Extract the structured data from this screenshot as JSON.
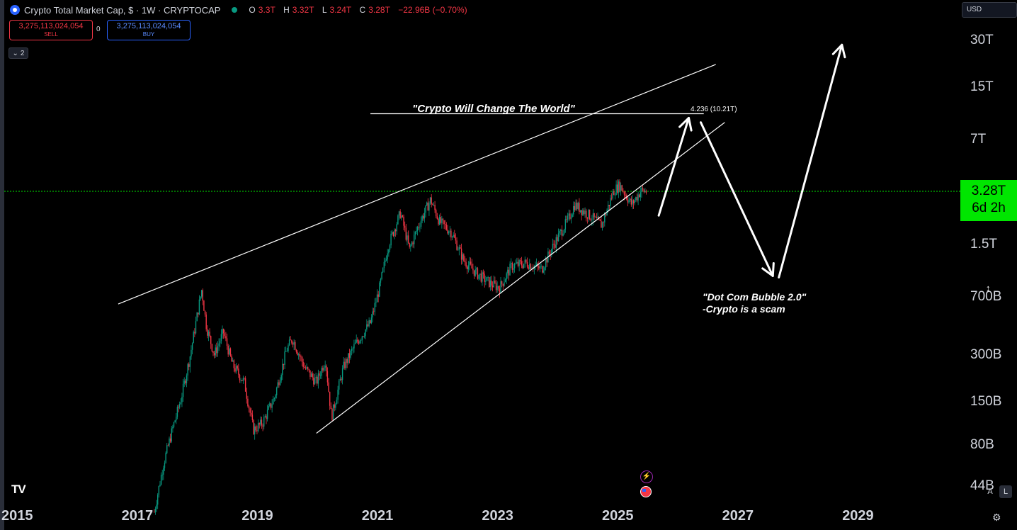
{
  "header": {
    "title": "Crypto Total Market Cap, $ · 1W · CRYPTOCAP",
    "ohlc": {
      "o": "3.3T",
      "h": "3.32T",
      "l": "3.24T",
      "c": "3.28T",
      "change": "−22.96B (−0.70%)"
    }
  },
  "trade": {
    "sell_value": "3,275,113,024,054",
    "sell_label": "SELL",
    "buy_value": "3,275,113,024,054",
    "buy_label": "BUY",
    "spread": "0"
  },
  "indicators_toggle": "2",
  "currency": "USD",
  "price_tag": {
    "price": "3.28T",
    "countdown": "6d 2h"
  },
  "icons": [
    "tradingview-logo",
    "lightning-icon",
    "us-flag-icon",
    "settings-icon",
    "chevron-down-icon"
  ],
  "scale_buttons": {
    "auto": "A",
    "log": "L"
  },
  "colors": {
    "up": "#089981",
    "down": "#f23645",
    "price_line": "#00e600",
    "drawing": "#ffffff"
  },
  "chart_data": {
    "type": "line",
    "title": "Crypto Total Market Cap, $ · 1W · CRYPTOCAP",
    "scale": "log",
    "y_ticks": [
      "30T",
      "15T",
      "7T",
      "3.28T",
      "1.5T",
      "700B",
      "300B",
      "150B",
      "80B",
      "44B"
    ],
    "x_ticks": [
      "2015",
      "2017",
      "2019",
      "2021",
      "2023",
      "2025",
      "2027",
      "2029"
    ],
    "current_value": 3280000000000.0,
    "series": [
      {
        "values": [
          {
            "x": 2017.25,
            "y": 30000000000.0
          },
          {
            "x": 2017.4,
            "y": 60000000000.0
          },
          {
            "x": 2017.55,
            "y": 100000000000.0
          },
          {
            "x": 2017.7,
            "y": 160000000000.0
          },
          {
            "x": 2017.85,
            "y": 300000000000.0
          },
          {
            "x": 2017.97,
            "y": 550000000000.0
          },
          {
            "x": 2018.04,
            "y": 780000000000.0
          },
          {
            "x": 2018.12,
            "y": 450000000000.0
          },
          {
            "x": 2018.25,
            "y": 300000000000.0
          },
          {
            "x": 2018.4,
            "y": 420000000000.0
          },
          {
            "x": 2018.55,
            "y": 260000000000.0
          },
          {
            "x": 2018.75,
            "y": 200000000000.0
          },
          {
            "x": 2018.9,
            "y": 100000000000.0
          },
          {
            "x": 2019.05,
            "y": 110000000000.0
          },
          {
            "x": 2019.25,
            "y": 160000000000.0
          },
          {
            "x": 2019.45,
            "y": 320000000000.0
          },
          {
            "x": 2019.55,
            "y": 380000000000.0
          },
          {
            "x": 2019.75,
            "y": 250000000000.0
          },
          {
            "x": 2019.95,
            "y": 200000000000.0
          },
          {
            "x": 2020.1,
            "y": 280000000000.0
          },
          {
            "x": 2020.2,
            "y": 120000000000.0
          },
          {
            "x": 2020.4,
            "y": 250000000000.0
          },
          {
            "x": 2020.6,
            "y": 350000000000.0
          },
          {
            "x": 2020.85,
            "y": 480000000000.0
          },
          {
            "x": 2021.0,
            "y": 800000000000.0
          },
          {
            "x": 2021.15,
            "y": 1500000000000.0
          },
          {
            "x": 2021.35,
            "y": 2400000000000.0
          },
          {
            "x": 2021.5,
            "y": 1400000000000.0
          },
          {
            "x": 2021.65,
            "y": 2000000000000.0
          },
          {
            "x": 2021.85,
            "y": 2900000000000.0
          },
          {
            "x": 2022.0,
            "y": 2100000000000.0
          },
          {
            "x": 2022.2,
            "y": 1800000000000.0
          },
          {
            "x": 2022.4,
            "y": 1200000000000.0
          },
          {
            "x": 2022.6,
            "y": 1000000000000.0
          },
          {
            "x": 2022.85,
            "y": 850000000000.0
          },
          {
            "x": 2023.0,
            "y": 800000000000.0
          },
          {
            "x": 2023.2,
            "y": 1100000000000.0
          },
          {
            "x": 2023.45,
            "y": 1150000000000.0
          },
          {
            "x": 2023.7,
            "y": 1050000000000.0
          },
          {
            "x": 2023.9,
            "y": 1500000000000.0
          },
          {
            "x": 2024.15,
            "y": 2200000000000.0
          },
          {
            "x": 2024.25,
            "y": 2700000000000.0
          },
          {
            "x": 2024.5,
            "y": 2300000000000.0
          },
          {
            "x": 2024.7,
            "y": 2000000000000.0
          },
          {
            "x": 2024.9,
            "y": 3300000000000.0
          },
          {
            "x": 2025.0,
            "y": 3600000000000.0
          },
          {
            "x": 2025.2,
            "y": 2700000000000.0
          },
          {
            "x": 2025.35,
            "y": 3300000000000.0
          },
          {
            "x": 2025.45,
            "y": 3280000000000.0
          }
        ]
      }
    ],
    "annotations": {
      "top_label": "\"Crypto Will Change The World\"",
      "fib_label": "4.236 (10.21T)",
      "fib_level": 10210000000000.0,
      "bottom_label_1": "\"Dot Com Bubble 2.0\"",
      "bottom_label_2": "-Crypto is a scam"
    },
    "trendlines": [
      {
        "name": "upper",
        "from": {
          "x": 2016.65,
          "y": 630000000000.0
        },
        "to": {
          "x": 2026.6,
          "y": 21000000000000.0
        }
      },
      {
        "name": "lower",
        "from": {
          "x": 2019.95,
          "y": 95000000000.0
        },
        "to": {
          "x": 2026.75,
          "y": 9000000000000.0
        }
      }
    ],
    "projection_arrows": [
      {
        "from": {
          "x": 2025.65,
          "y": 2300000000000.0
        },
        "to": {
          "x": 2026.15,
          "y": 9600000000000.0
        }
      },
      {
        "from": {
          "x": 2026.35,
          "y": 9000000000000.0
        },
        "to": {
          "x": 2027.55,
          "y": 950000000000.0
        }
      },
      {
        "from": {
          "x": 2027.65,
          "y": 930000000000.0
        },
        "to": {
          "x": 2028.7,
          "y": 28000000000000.0
        }
      }
    ]
  }
}
